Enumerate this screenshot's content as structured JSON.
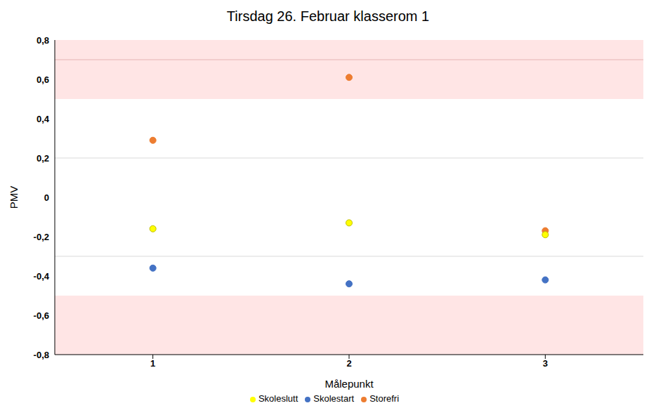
{
  "chart_data": {
    "type": "scatter",
    "title": "Tirsdag 26. Februar klasserom 1",
    "x_label": "Målepunkt",
    "y_label": "PMV",
    "categories": [
      "1",
      "2",
      "3"
    ],
    "series": [
      {
        "name": "Skolestart",
        "color": "#4472c4",
        "marker": "circle",
        "values": [
          -0.36,
          -0.44,
          -0.42
        ]
      },
      {
        "name": "Storefri",
        "color": "#ed7d31",
        "marker": "circle",
        "values": [
          0.29,
          0.61,
          -0.17
        ]
      },
      {
        "name": "Skoleslutt",
        "color": "#ffff00",
        "marker": "circle",
        "values": [
          -0.16,
          -0.13,
          -0.19
        ]
      }
    ],
    "ylim": [
      -0.8,
      0.8
    ],
    "yticks": [
      {
        "value": -0.8,
        "label": "-0,8"
      },
      {
        "value": -0.6,
        "label": "-0,6"
      },
      {
        "value": -0.4,
        "label": "-0,4"
      },
      {
        "value": -0.2,
        "label": "-0,2"
      },
      0,
      {
        "value": 0.2,
        "label": "0,2"
      },
      {
        "value": 0.4,
        "label": "0,4"
      },
      {
        "value": 0.6,
        "label": "0,6"
      },
      {
        "value": 0.8,
        "label": "0,8"
      }
    ],
    "bands": [
      {
        "from": 0.5,
        "to": 0.8,
        "color": "#ffe5e5"
      },
      {
        "from": -0.8,
        "to": -0.5,
        "color": "#ffe5e5"
      }
    ],
    "reference_lines": [
      {
        "value": 0.7,
        "color": "#e6b3b3"
      },
      {
        "value": 0.2,
        "color": "#d9d9d9"
      },
      {
        "value": -0.3,
        "color": "#d9d9d9"
      }
    ],
    "legend": "bottom"
  }
}
